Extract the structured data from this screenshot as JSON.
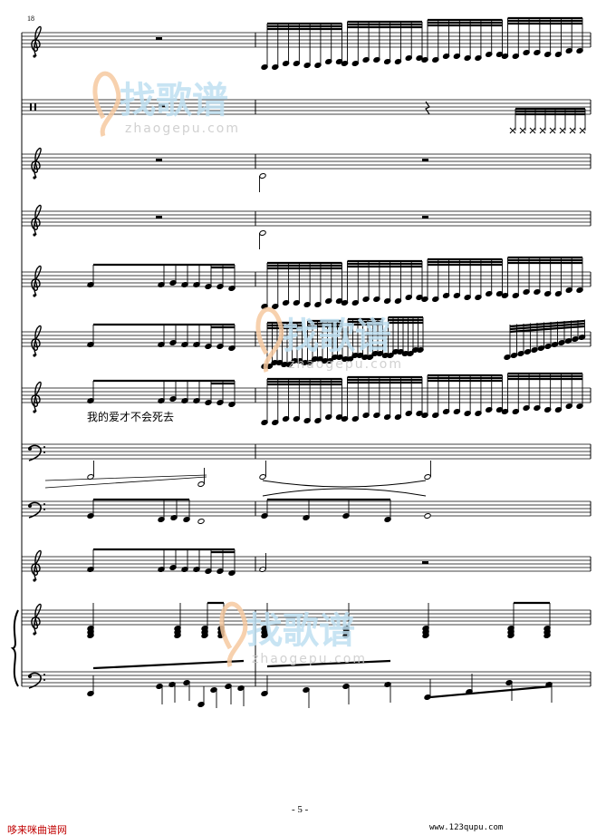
{
  "score": {
    "measure_number": "18",
    "lyric": "我的爱才不会死去",
    "page_number": "- 5 -",
    "staves": [
      {
        "id": "staff-1",
        "clef": "treble"
      },
      {
        "id": "staff-2",
        "clef": "percussion"
      },
      {
        "id": "staff-3",
        "clef": "treble"
      },
      {
        "id": "staff-4",
        "clef": "treble"
      },
      {
        "id": "staff-5",
        "clef": "treble"
      },
      {
        "id": "staff-6",
        "clef": "treble"
      },
      {
        "id": "staff-7",
        "clef": "treble"
      },
      {
        "id": "staff-8",
        "clef": "bass"
      },
      {
        "id": "staff-9",
        "clef": "bass"
      },
      {
        "id": "staff-10",
        "clef": "treble"
      },
      {
        "id": "piano-treble",
        "clef": "treble"
      },
      {
        "id": "piano-bass",
        "clef": "bass"
      }
    ]
  },
  "watermark": {
    "logo_text": "找歌谱",
    "url_text": "zhaogepu.com"
  },
  "footer": {
    "site_left": "哆来咪曲谱网",
    "site_right": "www.123qupu.com"
  },
  "colors": {
    "ink": "#000000",
    "watermark_blue": "#bfe0f2",
    "watermark_orange": "#f6c9a0",
    "footer_red": "#c00000"
  }
}
